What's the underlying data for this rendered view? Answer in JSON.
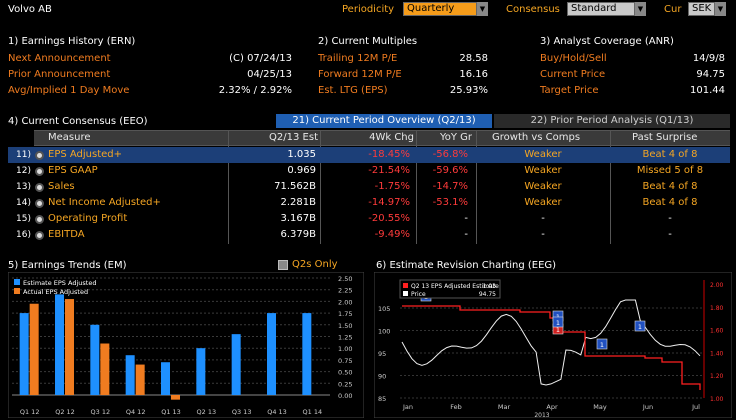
{
  "header": {
    "title": "Volvo AB",
    "periodicity_label": "Periodicity",
    "periodicity_value": "Quarterly",
    "consensus_label": "Consensus",
    "consensus_value": "Standard",
    "cur_label": "Cur",
    "cur_value": "SEK"
  },
  "earnings_history": {
    "title": "1) Earnings History (ERN)",
    "rows": [
      {
        "label": "Next Announcement",
        "value": "(C)  07/24/13"
      },
      {
        "label": "Prior Announcement",
        "value": "04/25/13"
      },
      {
        "label": "Avg/Implied 1 Day Move",
        "value": "2.32% / 2.92%"
      }
    ]
  },
  "current_multiples": {
    "title": "2) Current Multiples",
    "rows": [
      {
        "label": "Trailing 12M P/E",
        "value": "28.58"
      },
      {
        "label": "Forward 12M P/E",
        "value": "16.16"
      },
      {
        "label": "Est. LTG (EPS)",
        "value": "25.93%"
      }
    ]
  },
  "analyst_coverage": {
    "title": "3) Analyst Coverage (ANR)",
    "rows": [
      {
        "label": "Buy/Hold/Sell",
        "value": "14/9/8"
      },
      {
        "label": "Current Price",
        "value": "94.75"
      },
      {
        "label": "Target Price",
        "value": "101.44"
      }
    ]
  },
  "consensus": {
    "title": "4) Current Consensus (EEO)",
    "tab_active": "21) Current Period Overview (Q2/13)",
    "tab_inactive": "22) Prior Period Analysis (Q1/13)",
    "columns": [
      "Measure",
      "Q2/13 Est",
      "4Wk Chg",
      "YoY Gr",
      "Growth vs Comps",
      "Past Surprise"
    ],
    "rows": [
      {
        "num": "11)",
        "measure": "EPS Adjusted+",
        "est": "1.035",
        "chg4": "-18.45%",
        "yoy": "-56.8%",
        "growth": "Weaker",
        "surprise": "Beat 4 of 8"
      },
      {
        "num": "12)",
        "measure": "EPS GAAP",
        "est": "0.969",
        "chg4": "-21.54%",
        "yoy": "-59.6%",
        "growth": "Weaker",
        "surprise": "Missed 5 of 8"
      },
      {
        "num": "13)",
        "measure": "Sales",
        "est": "71.562B",
        "chg4": "-1.75%",
        "yoy": "-14.7%",
        "growth": "Weaker",
        "surprise": "Beat 4 of 8"
      },
      {
        "num": "14)",
        "measure": "Net Income Adjusted+",
        "est": "2.281B",
        "chg4": "-14.97%",
        "yoy": "-53.1%",
        "growth": "Weaker",
        "surprise": "Beat 4 of 8"
      },
      {
        "num": "15)",
        "measure": "Operating Profit",
        "est": "3.167B",
        "chg4": "-20.55%",
        "yoy": "-",
        "growth": "-",
        "surprise": "-"
      },
      {
        "num": "16)",
        "measure": "EBITDA",
        "est": "6.379B",
        "chg4": "-9.49%",
        "yoy": "-",
        "growth": "-",
        "surprise": "-"
      }
    ]
  },
  "trends": {
    "title": "5) Earnings Trends (EM)",
    "q2s_label": "Q2s Only"
  },
  "revision": {
    "title": "6) Estimate Revision Charting (EEG)"
  },
  "chart_data": [
    {
      "type": "bar",
      "categories": [
        "Q1 12",
        "Q2 12",
        "Q3 12",
        "Q4 12",
        "Q1 13",
        "Q2 13",
        "Q3 13",
        "Q4 13",
        "Q1 14"
      ],
      "series": [
        {
          "name": "Estimate EPS Adjusted",
          "color": "#1e90ff",
          "values": [
            1.75,
            2.15,
            1.5,
            0.85,
            0.7,
            1.0,
            1.3,
            1.75,
            1.75
          ]
        },
        {
          "name": "Actual EPS Adjusted",
          "color": "#f07c20",
          "values": [
            1.95,
            2.05,
            1.1,
            0.65,
            -0.1,
            null,
            null,
            null,
            null
          ]
        }
      ],
      "yticks": [
        "2.50",
        "2.25",
        "2.00",
        "1.75",
        "1.50",
        "1.25",
        "1.00",
        "0.75",
        "0.50",
        "0.25",
        "0.00"
      ],
      "ylim": [
        -0.15,
        2.5
      ]
    },
    {
      "type": "line",
      "legend": [
        {
          "name": "Q2 13 EPS Adjusted Estimate",
          "value": "1.03",
          "color": "#ff2020"
        },
        {
          "name": "Price",
          "value": "94.75",
          "color": "#ffffff"
        }
      ],
      "x_labels": [
        "Jan",
        "Feb",
        "Mar",
        "Apr",
        "May",
        "Jun",
        "Jul"
      ],
      "x_sublabel": "2013",
      "left_ticks": [
        "105",
        "100",
        "95",
        "90",
        "85"
      ],
      "right_ticks": [
        "2.00",
        "1.80",
        "1.60",
        "1.40",
        "1.20",
        "1.00"
      ],
      "markers": [
        "1",
        "1",
        "1",
        "1",
        "1",
        "1"
      ]
    }
  ]
}
